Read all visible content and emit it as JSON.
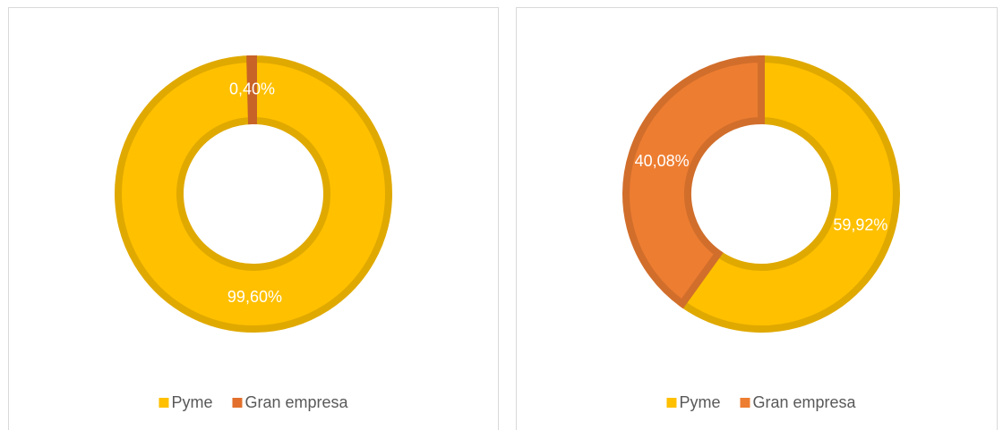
{
  "chart_data": [
    {
      "type": "donut",
      "categories": [
        "Pyme",
        "Gran empresa"
      ],
      "values": [
        99.6,
        0.4
      ],
      "value_labels": [
        "99,60%",
        "0,40%"
      ],
      "colors": [
        "#FFC000",
        "#E2702C"
      ],
      "legend": "bottom"
    },
    {
      "type": "donut",
      "categories": [
        "Pyme",
        "Gran empresa"
      ],
      "values": [
        59.92,
        40.08
      ],
      "value_labels": [
        "59,92%",
        "40,08%"
      ],
      "colors": [
        "#FFC000",
        "#ED7D31"
      ],
      "legend": "bottom"
    }
  ]
}
